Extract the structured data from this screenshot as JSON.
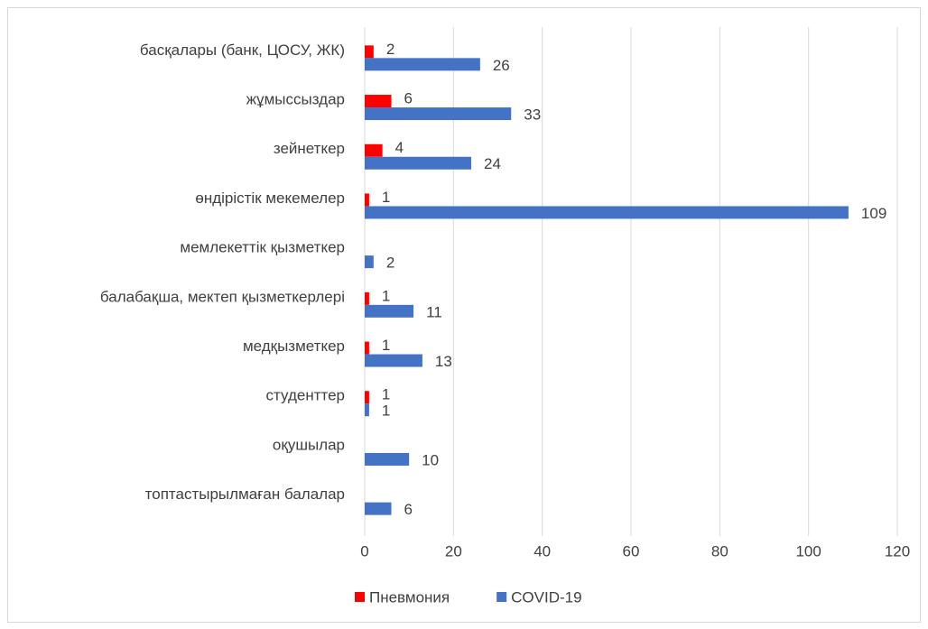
{
  "chart_data": {
    "type": "bar",
    "orientation": "horizontal",
    "categories": [
      "басқалары (банк, ЦОСУ, ЖК)",
      "жұмыссыздар",
      "зейнеткер",
      "өндірістік мекемелер",
      "мемлекеттік қызметкер",
      "балабақша, мектеп қызметкерлері",
      "медқызметкер",
      "студенттер",
      "оқушылар",
      "топтастырылмаған балалар"
    ],
    "series": [
      {
        "name": "Пневмония",
        "color": "#ff0000",
        "values": [
          2,
          6,
          4,
          1,
          null,
          1,
          1,
          1,
          null,
          null
        ]
      },
      {
        "name": "COVID-19",
        "color": "#4472c4",
        "values": [
          26,
          33,
          24,
          109,
          2,
          11,
          13,
          1,
          10,
          6
        ]
      }
    ],
    "xlim": [
      0,
      120
    ],
    "xticks": [
      0,
      20,
      40,
      60,
      80,
      100,
      120
    ],
    "grid": true,
    "legend": "bottom"
  }
}
